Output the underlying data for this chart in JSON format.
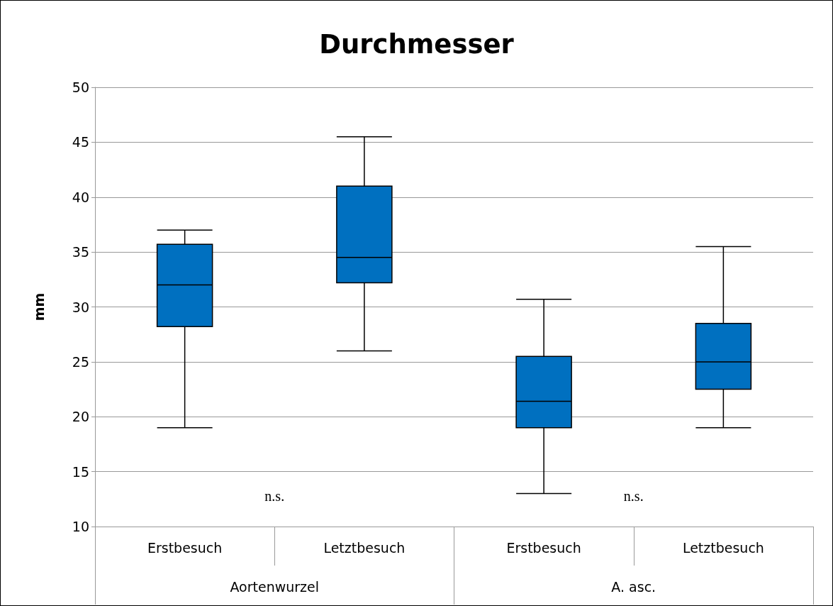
{
  "chart_data": {
    "type": "box",
    "title": "Durchmesser",
    "ylabel": "mm",
    "categories": [
      "Erstbesuch",
      "Letztbesuch",
      "Erstbesuch",
      "Letztbesuch"
    ],
    "boxes": [
      {
        "low": 19,
        "q1": 28.2,
        "median": 32,
        "q3": 35.7,
        "high": 37
      },
      {
        "low": 26,
        "q1": 32.2,
        "median": 34.5,
        "q3": 41,
        "high": 45.5
      },
      {
        "low": 13,
        "q1": 19,
        "median": 21.4,
        "q3": 25.5,
        "high": 30.7
      },
      {
        "low": 19,
        "q1": 22.5,
        "median": 25,
        "q3": 28.5,
        "high": 35.5
      }
    ],
    "color": "#0070c0",
    "ylim": [
      10,
      50
    ],
    "yticks": [
      10,
      15,
      20,
      25,
      30,
      35,
      40,
      45,
      50
    ],
    "grid": "y",
    "annotations": [
      "n.s.",
      "n.s.",
      "Aortenwurzel",
      "A. asc."
    ]
  }
}
